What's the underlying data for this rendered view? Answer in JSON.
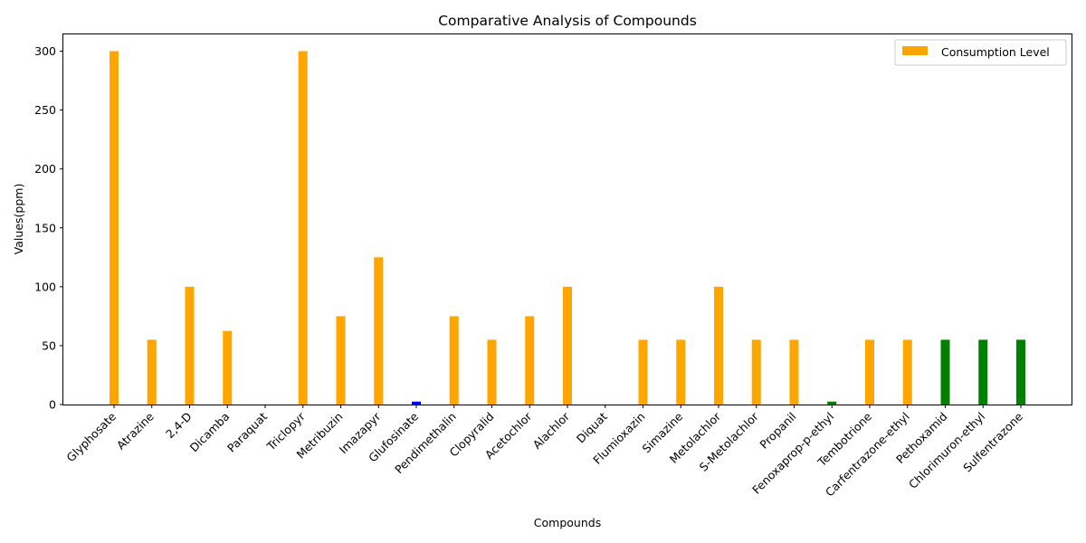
{
  "chart_data": {
    "type": "bar",
    "title": "Comparative Analysis of Compounds",
    "xlabel": "Compounds",
    "ylabel": "Values(ppm)",
    "ylim": [
      0,
      315
    ],
    "yticks": [
      0,
      50,
      100,
      150,
      200,
      250,
      300
    ],
    "categories": [
      "Glyphosate",
      "Atrazine",
      "2,4-D",
      "Dicamba",
      "Paraquat",
      "Triclopyr",
      "Metribuzin",
      "Imazapyr",
      "Glufosinate",
      "Pendimethalin",
      "Clopyralid",
      "Acetochlor",
      "Alachlor",
      "Diquat",
      "Flumioxazin",
      "Simazine",
      "Metolachlor",
      "S-Metolachlor",
      "Propanil",
      "Fenoxaprop-p-ethyl",
      "Tembotrione",
      "Carfentrazone-ethyl",
      "Pethoxamid",
      "Chlorimuron-ethyl",
      "Sulfentrazone"
    ],
    "values": [
      300,
      55,
      100,
      62.5,
      0,
      300,
      75,
      125,
      2.5,
      75,
      55,
      75,
      100,
      0,
      55,
      55,
      100,
      55,
      55,
      2.5,
      55,
      55,
      55,
      55,
      55
    ],
    "bar_colors": [
      "#FFA500",
      "#FFA500",
      "#FFA500",
      "#FFA500",
      "#FFA500",
      "#FFA500",
      "#FFA500",
      "#FFA500",
      "#0000FF",
      "#FFA500",
      "#FFA500",
      "#FFA500",
      "#FFA500",
      "#FFA500",
      "#FFA500",
      "#FFA500",
      "#FFA500",
      "#FFA500",
      "#FFA500",
      "#008000",
      "#FFA500",
      "#FFA500",
      "#008000",
      "#008000",
      "#008000"
    ],
    "legend": {
      "position": "top-right",
      "entries": [
        {
          "label": "Consumption Level",
          "color": "#FFA500"
        }
      ]
    },
    "grid": false
  }
}
